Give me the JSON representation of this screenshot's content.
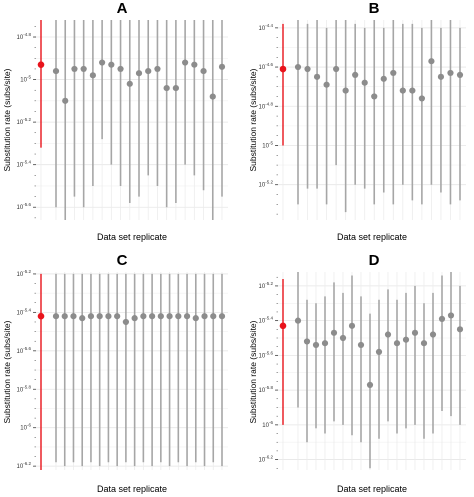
{
  "chart_data": [
    {
      "panel": "A",
      "type": "scatter",
      "xlabel": "Data set replicate",
      "ylabel": "Substitution rate (subs/site)",
      "log_scale": true,
      "ytick_exponents": [
        -4.8,
        -5,
        -5.2,
        -5.4,
        -5.6
      ],
      "ytick_labels": [
        {
          "base": "10",
          "exp": "-4.8"
        },
        {
          "base": "10",
          "exp": "-5"
        },
        {
          "base": "10",
          "exp": "-5.2"
        },
        {
          "base": "10",
          "exp": "-5.4"
        },
        {
          "base": "10",
          "exp": "-5.6"
        }
      ],
      "ylim_exp": [
        -5.66,
        -4.72
      ],
      "reference": {
        "exp": -4.93,
        "lower_exp": -5.32,
        "upper_exp": -4.72,
        "color": "#e8131b"
      },
      "series": [
        {
          "values": [
            -4.96,
            -5.1,
            -4.95,
            -4.95,
            -4.98,
            -4.92,
            -4.93,
            -4.95,
            -5.02,
            -4.97,
            -4.96,
            -4.95,
            -5.04,
            -5.04,
            -4.92,
            -4.93,
            -4.96,
            -5.08,
            -4.94
          ],
          "lower": [
            -5.6,
            -5.66,
            -5.55,
            -5.6,
            -5.5,
            -5.28,
            -5.4,
            -5.5,
            -5.58,
            -5.55,
            -5.45,
            -5.5,
            -5.6,
            -5.58,
            -5.4,
            -5.45,
            -5.52,
            -5.66,
            -5.55
          ],
          "upper": [
            -4.72,
            -4.72,
            -4.72,
            -4.72,
            -4.72,
            -4.72,
            -4.72,
            -4.72,
            -4.72,
            -4.72,
            -4.72,
            -4.72,
            -4.72,
            -4.72,
            -4.72,
            -4.72,
            -4.72,
            -4.72,
            -4.72
          ],
          "color": "#8c8c8c"
        }
      ]
    },
    {
      "panel": "B",
      "type": "scatter",
      "xlabel": "Data set replicate",
      "ylabel": "Substitution rate (subs/site)",
      "log_scale": true,
      "ytick_exponents": [
        -4.4,
        -4.6,
        -4.8,
        -5,
        -5.2
      ],
      "ytick_labels": [
        {
          "base": "10",
          "exp": "-4.4"
        },
        {
          "base": "10",
          "exp": "-4.6"
        },
        {
          "base": "10",
          "exp": "-4.8"
        },
        {
          "base": "10",
          "exp": "-5"
        },
        {
          "base": "10",
          "exp": "-5.2"
        }
      ],
      "ylim_exp": [
        -5.38,
        -4.36
      ],
      "reference": {
        "exp": -4.61,
        "lower_exp": -5.0,
        "upper_exp": -4.38,
        "color": "#e8131b"
      },
      "series": [
        {
          "values": [
            -4.6,
            -4.61,
            -4.65,
            -4.69,
            -4.61,
            -4.72,
            -4.64,
            -4.68,
            -4.75,
            -4.66,
            -4.63,
            -4.72,
            -4.72,
            -4.76,
            -4.57,
            -4.65,
            -4.63,
            -4.64
          ],
          "lower": [
            -5.3,
            -5.22,
            -5.22,
            -5.3,
            -5.1,
            -5.34,
            -5.2,
            -5.22,
            -5.3,
            -5.24,
            -5.3,
            -5.2,
            -5.28,
            -5.3,
            -5.2,
            -5.24,
            -5.3,
            -5.28
          ],
          "upper": [
            -4.36,
            -4.38,
            -4.36,
            -4.4,
            -4.36,
            -4.36,
            -4.38,
            -4.4,
            -4.36,
            -4.4,
            -4.36,
            -4.38,
            -4.38,
            -4.4,
            -4.36,
            -4.4,
            -4.36,
            -4.4
          ],
          "color": "#8c8c8c"
        }
      ]
    },
    {
      "panel": "C",
      "type": "scatter",
      "xlabel": "Data set replicate",
      "ylabel": "Substitution rate (subs/site)",
      "log_scale": true,
      "ytick_exponents": [
        -5.2,
        -5.4,
        -5.6,
        -5.8,
        -6,
        -6.2
      ],
      "ytick_labels": [
        {
          "base": "10",
          "exp": "-5.2"
        },
        {
          "base": "10",
          "exp": "-5.4"
        },
        {
          "base": "10",
          "exp": "-5.6"
        },
        {
          "base": "10",
          "exp": "-5.8"
        },
        {
          "base": "10",
          "exp": "-6"
        },
        {
          "base": "10",
          "exp": "-6.2"
        }
      ],
      "ylim_exp": [
        -6.22,
        -5.19
      ],
      "reference": {
        "exp": -5.42,
        "lower_exp": -6.22,
        "upper_exp": -5.2,
        "color": "#e8131b"
      },
      "series": [
        {
          "values": [
            -5.42,
            -5.42,
            -5.42,
            -5.43,
            -5.42,
            -5.42,
            -5.42,
            -5.42,
            -5.45,
            -5.43,
            -5.42,
            -5.42,
            -5.42,
            -5.42,
            -5.42,
            -5.42,
            -5.43,
            -5.42,
            -5.42,
            -5.42
          ],
          "lower": [
            -6.18,
            -6.2,
            -6.18,
            -6.2,
            -6.18,
            -6.2,
            -6.18,
            -6.2,
            -6.18,
            -6.2,
            -6.18,
            -6.2,
            -6.18,
            -6.2,
            -6.18,
            -6.2,
            -6.18,
            -6.2,
            -6.18,
            -6.2
          ],
          "upper": [
            -5.2,
            -5.2,
            -5.2,
            -5.2,
            -5.2,
            -5.2,
            -5.2,
            -5.2,
            -5.2,
            -5.2,
            -5.2,
            -5.2,
            -5.2,
            -5.2,
            -5.2,
            -5.2,
            -5.2,
            -5.2,
            -5.2,
            -5.2
          ],
          "color": "#8c8c8c"
        }
      ]
    },
    {
      "panel": "D",
      "type": "scatter",
      "xlabel": "Data set replicate",
      "ylabel": "Substitution rate (subs/site)",
      "log_scale": true,
      "ytick_exponents": [
        -5.2,
        -5.4,
        -5.6,
        -5.8,
        -6,
        -6.2
      ],
      "ytick_labels": [
        {
          "base": "10",
          "exp": "-5.2"
        },
        {
          "base": "10",
          "exp": "-5.4"
        },
        {
          "base": "10",
          "exp": "-5.6"
        },
        {
          "base": "10",
          "exp": "-5.8"
        },
        {
          "base": "10",
          "exp": "-6"
        },
        {
          "base": "10",
          "exp": "-6.2"
        }
      ],
      "ylim_exp": [
        -6.26,
        -5.12
      ],
      "reference": {
        "exp": -5.43,
        "lower_exp": -6.0,
        "upper_exp": -5.16,
        "color": "#e8131b"
      },
      "series": [
        {
          "values": [
            -5.4,
            -5.52,
            -5.54,
            -5.53,
            -5.47,
            -5.5,
            -5.43,
            -5.54,
            -5.77,
            -5.58,
            -5.48,
            -5.53,
            -5.51,
            -5.47,
            -5.53,
            -5.48,
            -5.39,
            -5.37,
            -5.45
          ],
          "lower": [
            -5.9,
            -6.1,
            -6.02,
            -6.05,
            -5.98,
            -6.0,
            -6.06,
            -6.1,
            -6.25,
            -6.08,
            -5.98,
            -6.05,
            -6.02,
            -6.0,
            -6.08,
            -6.05,
            -5.92,
            -5.95,
            -6.0
          ],
          "upper": [
            -5.12,
            -5.28,
            -5.3,
            -5.26,
            -5.18,
            -5.24,
            -5.14,
            -5.26,
            -5.36,
            -5.28,
            -5.22,
            -5.28,
            -5.24,
            -5.2,
            -5.3,
            -5.24,
            -5.14,
            -5.12,
            -5.2
          ],
          "color": "#8c8c8c"
        }
      ]
    }
  ]
}
